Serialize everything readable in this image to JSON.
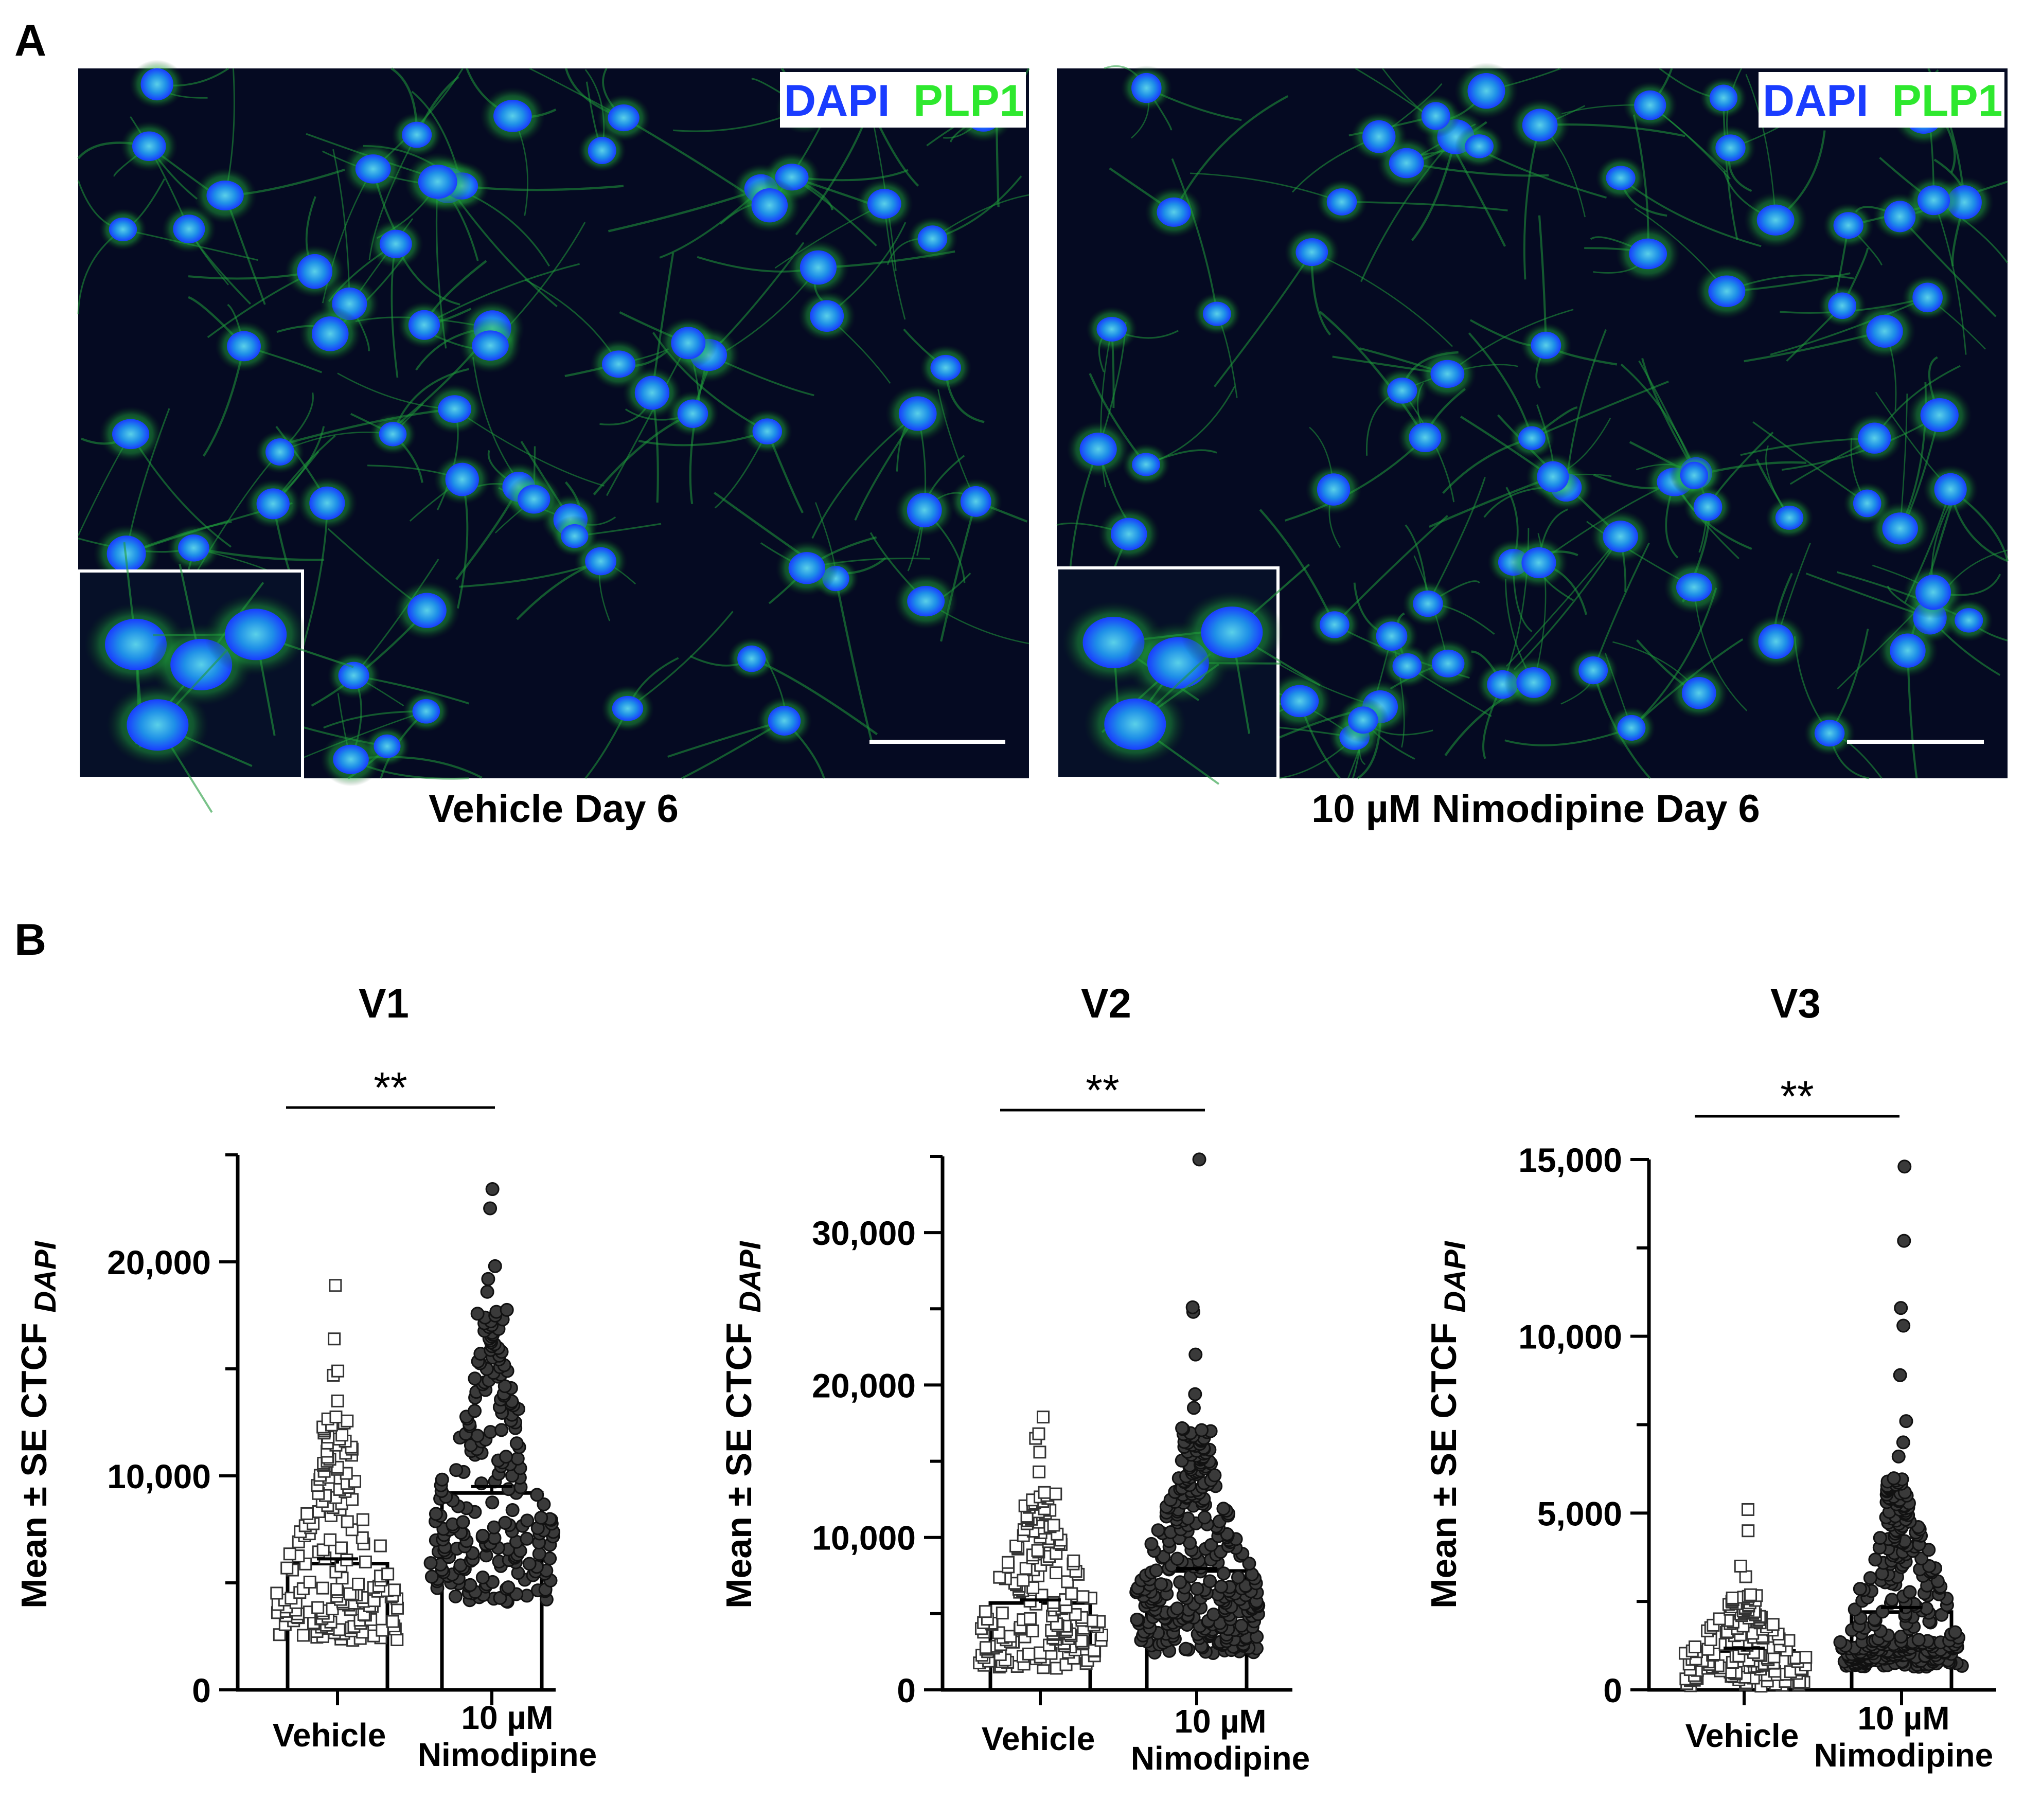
{
  "panel_labels": {
    "a": "A",
    "b": "B"
  },
  "micrographs": [
    {
      "label_dapi": "DAPI",
      "label_plp1": "PLP1",
      "caption": "Vehicle Day 6"
    },
    {
      "label_dapi": "DAPI",
      "label_plp1": "PLP1",
      "caption": "10 µM Nimodipine Day 6"
    }
  ],
  "colors": {
    "dapi": "#1a3cff",
    "plp1": "#2ee82e",
    "micrograph_bg": "#050a22",
    "vehicle_marker": "#ffffff",
    "nimodipine_marker": "#3a3a3a"
  },
  "chart_data": [
    {
      "type": "bar",
      "title": "V1",
      "ylabel": "Mean ± SE CTCF",
      "ylabel_subscript": "DAPI",
      "ylim": [
        0,
        25000
      ],
      "yticks": [
        0,
        10000,
        20000
      ],
      "ytick_labels": [
        "0",
        "10,000",
        "20,000"
      ],
      "categories": [
        "Vehicle",
        "10 µM Nimodipine"
      ],
      "category_lines": [
        [
          "Vehicle"
        ],
        [
          "10 µM",
          "Nimodipine"
        ]
      ],
      "means": [
        5900,
        9200
      ],
      "se": [
        220,
        300
      ],
      "significance": "**",
      "points": [
        {
          "n": 170,
          "min": 2300,
          "median": 4800,
          "max": 12800,
          "extremes": [
            13500,
            14700,
            14900,
            16400,
            18900
          ]
        },
        {
          "n": 220,
          "min": 4100,
          "median": 8000,
          "max": 17800,
          "extremes": [
            18600,
            19200,
            19800,
            22500,
            23400
          ]
        }
      ]
    },
    {
      "type": "bar",
      "title": "V2",
      "ylabel": "Mean ± SE CTCF",
      "ylabel_subscript": "DAPI",
      "ylim": [
        0,
        35000
      ],
      "yticks": [
        0,
        10000,
        20000,
        30000
      ],
      "ytick_labels": [
        "0",
        "10,000",
        "20,000",
        "30,000"
      ],
      "categories": [
        "Vehicle",
        "10 µM Nimodipine"
      ],
      "category_lines": [
        [
          "Vehicle"
        ],
        [
          "10 µM",
          "Nimodipine"
        ]
      ],
      "means": [
        5700,
        7800
      ],
      "se": [
        200,
        160
      ],
      "significance": "**",
      "points": [
        {
          "n": 170,
          "min": 1400,
          "median": 4700,
          "max": 13000,
          "extremes": [
            14300,
            15600,
            16500,
            16800,
            17900
          ]
        },
        {
          "n": 320,
          "min": 2400,
          "median": 6900,
          "max": 17200,
          "extremes": [
            18500,
            19400,
            22000,
            24800,
            25100,
            34800
          ]
        }
      ]
    },
    {
      "type": "bar",
      "title": "V3",
      "ylabel": "Mean ± SE CTCF",
      "ylabel_subscript": "DAPI",
      "ylim": [
        0,
        15000
      ],
      "yticks": [
        0,
        5000,
        10000,
        15000
      ],
      "ytick_labels": [
        "0",
        "5,000",
        "10,000",
        "15,000"
      ],
      "categories": [
        "Vehicle",
        "10 µM Nimodipine"
      ],
      "category_lines": [
        [
          "Vehicle"
        ],
        [
          "10 µM",
          "Nimodipine"
        ]
      ],
      "means": [
        1100,
        2200
      ],
      "se": [
        80,
        130
      ],
      "significance": "**",
      "points": [
        {
          "n": 150,
          "min": 100,
          "median": 1000,
          "max": 2700,
          "extremes": [
            3200,
            3500,
            4500,
            5100
          ]
        },
        {
          "n": 300,
          "min": 650,
          "median": 1400,
          "max": 6000,
          "extremes": [
            6600,
            7000,
            7600,
            8900,
            10300,
            10800,
            12700,
            14800
          ]
        }
      ]
    }
  ]
}
